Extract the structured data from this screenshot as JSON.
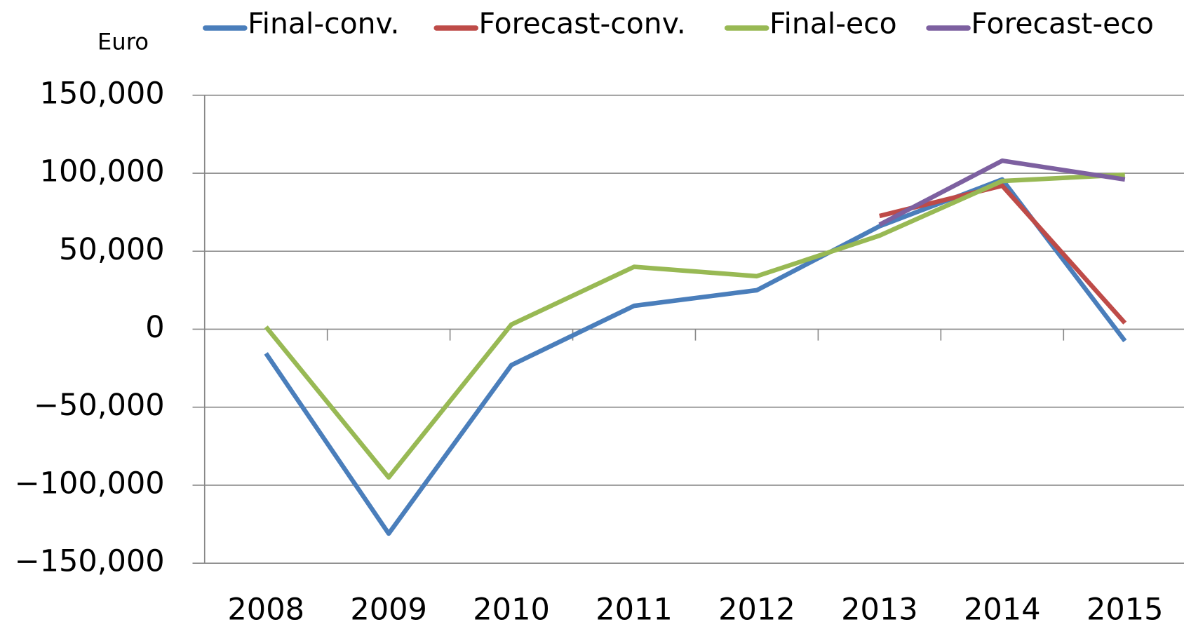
{
  "chart_data": {
    "type": "line",
    "y_label": "Euro",
    "categories": [
      "2008",
      "2009",
      "2010",
      "2011",
      "2012",
      "2013",
      "2014",
      "2015"
    ],
    "series": [
      {
        "name": "Final-conv.",
        "color": "#4a7ebb",
        "values": [
          -15500,
          -131000,
          -23000,
          15000,
          25000,
          66000,
          96000,
          -7500
        ]
      },
      {
        "name": "Forecast-conv.",
        "color": "#be4b48",
        "values": [
          null,
          null,
          null,
          null,
          null,
          72600,
          92000,
          4000
        ]
      },
      {
        "name": "Final-eco",
        "color": "#98b954",
        "values": [
          1500,
          -95000,
          3000,
          40000,
          34000,
          60000,
          95000,
          99000
        ]
      },
      {
        "name": "Forecast-eco",
        "color": "#7d60a0",
        "values": [
          null,
          null,
          null,
          null,
          null,
          67000,
          108000,
          96000
        ]
      }
    ],
    "ylim": [
      -150000,
      150000
    ],
    "yticks": [
      {
        "value": -150000,
        "label": "−150,000"
      },
      {
        "value": -100000,
        "label": "−100,000"
      },
      {
        "value": -50000,
        "label": "−50,000"
      },
      0,
      {
        "value": 50000,
        "label": "50,000"
      },
      {
        "value": 100000,
        "label": "100,000"
      },
      {
        "value": 150000,
        "label": "150,000"
      }
    ],
    "grid": true,
    "legend": "top"
  }
}
